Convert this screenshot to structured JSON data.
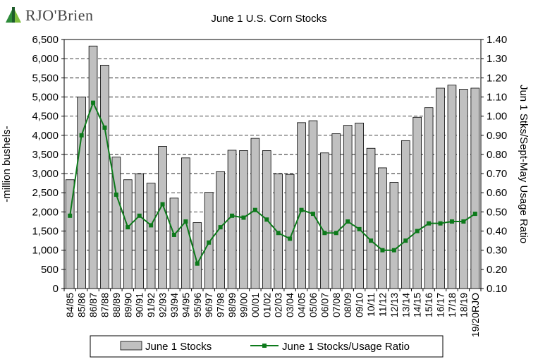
{
  "branding": {
    "name": "RJO'Brien",
    "icon": "rjo-brien-logo-icon"
  },
  "chart_data": {
    "type": "bar",
    "title": "June 1 U.S. Corn Stocks",
    "xlabel": "",
    "ylabel": "-million bushels-",
    "y2label": "Jun 1 Stks/Sept-May Usage Ratio",
    "ylim": [
      0,
      6500
    ],
    "y2lim": [
      0.1,
      1.4
    ],
    "yticks": [
      "0",
      "500",
      "1,000",
      "1,500",
      "2,000",
      "2,500",
      "3,000",
      "3,500",
      "4,000",
      "4,500",
      "5,000",
      "5,500",
      "6,000",
      "6,500"
    ],
    "y2ticks": [
      "0.10",
      "0.20",
      "0.30",
      "0.40",
      "0.50",
      "0.60",
      "0.70",
      "0.80",
      "0.90",
      "1.00",
      "1.10",
      "1.20",
      "1.30",
      "1.40"
    ],
    "grid": "horizontal dashed",
    "legend_position": "bottom",
    "categories": [
      "84/85",
      "85/86",
      "86/87",
      "87/88",
      "88/89",
      "89/90",
      "90/91",
      "91/92",
      "92/93",
      "93/94",
      "94/95",
      "95/96",
      "96/97",
      "97/98",
      "98/99",
      "99/00",
      "00/01",
      "01/02",
      "02/03",
      "03/04",
      "04/05",
      "05/06",
      "06/07",
      "07/08",
      "08/09",
      "09/10",
      "10/11",
      "11/12",
      "12/13",
      "13/14",
      "14/15",
      "15/16",
      "16/17",
      "17/18",
      "18/19",
      "19/20RJO"
    ],
    "series": [
      {
        "name": "June 1 Stocks",
        "type": "bar",
        "axis": "left",
        "color": "#c0c0c0",
        "values": [
          2840,
          5000,
          6330,
          5830,
          3430,
          2840,
          2990,
          2750,
          3710,
          2360,
          3410,
          1720,
          2510,
          3050,
          3610,
          3600,
          3920,
          3600,
          2990,
          2980,
          4330,
          4380,
          3540,
          4040,
          4260,
          4320,
          3660,
          3150,
          2770,
          3860,
          4470,
          4720,
          5230,
          5310,
          5200,
          5230
        ]
      },
      {
        "name": "June 1 Stocks/Usage Ratio",
        "type": "line",
        "axis": "right",
        "color": "#0d7a1b",
        "values": [
          0.48,
          0.9,
          1.07,
          0.94,
          0.59,
          0.42,
          0.48,
          0.43,
          0.54,
          0.38,
          0.45,
          0.23,
          0.34,
          0.42,
          0.48,
          0.47,
          0.51,
          0.46,
          0.39,
          0.36,
          0.51,
          0.49,
          0.39,
          0.39,
          0.45,
          0.41,
          0.35,
          0.3,
          0.3,
          0.35,
          0.4,
          0.44,
          0.44,
          0.45,
          0.45,
          0.49
        ]
      }
    ]
  }
}
